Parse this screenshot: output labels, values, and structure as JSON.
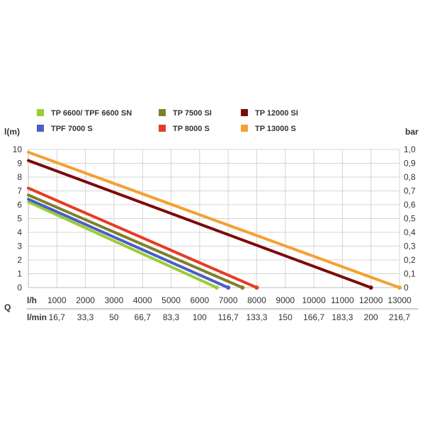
{
  "chart_data": {
    "type": "line",
    "ylabel_left": "l(m)",
    "ylabel_right": "bar",
    "q_label": "Q",
    "row_label_lh": "l/h",
    "row_label_lmin": "l/min",
    "x_ticks": [
      1000,
      2000,
      3000,
      4000,
      5000,
      6000,
      7000,
      8000,
      9000,
      10000,
      11000,
      12000,
      13000
    ],
    "x_tick_labels": [
      "1000",
      "2000",
      "3000",
      "4000",
      "5000",
      "6000",
      "7000",
      "8000",
      "9000",
      "10000",
      "11000",
      "12000",
      "13000"
    ],
    "lmin_tick_labels": [
      "16,7",
      "33,3",
      "50",
      "66,7",
      "83,3",
      "100",
      "116,7",
      "133,3",
      "150",
      "166,7",
      "183,3",
      "200",
      "216,7"
    ],
    "xlim": [
      0,
      13000
    ],
    "ylim_left": [
      0,
      10
    ],
    "ylim_right": [
      0,
      1
    ],
    "y_ticks_left": [
      "0",
      "1",
      "2",
      "3",
      "4",
      "5",
      "6",
      "7",
      "8",
      "9",
      "10"
    ],
    "y_ticks_right": [
      "0",
      "0,1",
      "0,2",
      "0,3",
      "0,4",
      "0,5",
      "0,6",
      "0,7",
      "0,8",
      "0,9",
      "1,0"
    ],
    "legend_position": "top",
    "series": [
      {
        "name": "TP 6600/ TPF 6600 SN",
        "color": "#9acd32",
        "x": [
          0,
          6600
        ],
        "y": [
          6.2,
          0
        ]
      },
      {
        "name": "TPF 7000 S",
        "color": "#4a5ec8",
        "x": [
          0,
          7000
        ],
        "y": [
          6.4,
          0
        ]
      },
      {
        "name": "TP 7500 SI",
        "color": "#7f7f2a",
        "x": [
          0,
          7500
        ],
        "y": [
          6.7,
          0
        ]
      },
      {
        "name": "TP 8000 S",
        "color": "#e53d23",
        "x": [
          0,
          8000
        ],
        "y": [
          7.2,
          0
        ]
      },
      {
        "name": "TP 12000 SI",
        "color": "#7d0a0a",
        "x": [
          0,
          12000
        ],
        "y": [
          9.2,
          0
        ]
      },
      {
        "name": "TP 13000 S",
        "color": "#f5a031",
        "x": [
          0,
          13000
        ],
        "y": [
          9.8,
          0
        ]
      }
    ],
    "legend_order": [
      0,
      2,
      4,
      1,
      3,
      5
    ]
  }
}
